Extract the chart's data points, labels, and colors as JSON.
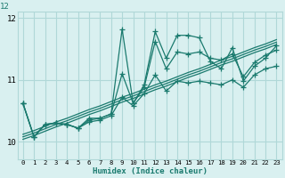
{
  "xlabel": "Humidex (Indice chaleur)",
  "x_values": [
    0,
    1,
    2,
    3,
    4,
    5,
    6,
    7,
    8,
    9,
    10,
    11,
    12,
    13,
    14,
    15,
    16,
    17,
    18,
    19,
    20,
    21,
    22,
    23
  ],
  "main_line": [
    10.62,
    10.08,
    10.28,
    10.3,
    10.28,
    10.22,
    10.38,
    10.38,
    10.45,
    11.82,
    10.62,
    10.92,
    11.78,
    11.35,
    11.72,
    11.72,
    11.68,
    11.3,
    11.18,
    11.52,
    10.98,
    11.22,
    11.35,
    11.55
  ],
  "line1": [
    10.62,
    10.08,
    10.28,
    10.3,
    10.28,
    10.22,
    10.35,
    10.38,
    10.45,
    11.1,
    10.62,
    10.88,
    11.62,
    11.18,
    11.45,
    11.42,
    11.45,
    11.35,
    11.32,
    11.42,
    11.05,
    11.28,
    11.4,
    11.48
  ],
  "line2": [
    10.62,
    10.08,
    10.28,
    10.3,
    10.28,
    10.22,
    10.32,
    10.35,
    10.42,
    10.72,
    10.58,
    10.78,
    11.08,
    10.82,
    10.98,
    10.95,
    10.98,
    10.95,
    10.92,
    11.0,
    10.88,
    11.08,
    11.18,
    11.22
  ],
  "trend1": [
    10.12,
    10.18,
    10.25,
    10.32,
    10.38,
    10.45,
    10.52,
    10.58,
    10.65,
    10.72,
    10.78,
    10.85,
    10.92,
    10.98,
    11.05,
    11.12,
    11.18,
    11.25,
    11.32,
    11.38,
    11.45,
    11.52,
    11.58,
    11.65
  ],
  "trend2": [
    10.08,
    10.14,
    10.21,
    10.28,
    10.34,
    10.41,
    10.48,
    10.54,
    10.61,
    10.68,
    10.74,
    10.81,
    10.88,
    10.94,
    11.01,
    11.08,
    11.14,
    11.21,
    11.28,
    11.34,
    11.41,
    11.48,
    11.54,
    11.61
  ],
  "trend3": [
    10.04,
    10.1,
    10.17,
    10.24,
    10.3,
    10.37,
    10.44,
    10.5,
    10.57,
    10.64,
    10.7,
    10.77,
    10.84,
    10.9,
    10.97,
    11.04,
    11.1,
    11.17,
    11.24,
    11.3,
    11.37,
    11.44,
    11.5,
    11.57
  ],
  "ylim": [
    9.72,
    12.1
  ],
  "yticks": [
    10,
    11,
    12
  ],
  "xlim": [
    -0.5,
    23.5
  ],
  "xticks": [
    0,
    1,
    2,
    3,
    4,
    5,
    6,
    7,
    8,
    9,
    10,
    11,
    12,
    13,
    14,
    15,
    16,
    17,
    18,
    19,
    20,
    21,
    22,
    23
  ],
  "line_color": "#1a7a6e",
  "bg_color": "#d9f0f0",
  "grid_color": "#b0d8d8",
  "marker": "+",
  "markersize": 5,
  "linewidth": 0.9
}
